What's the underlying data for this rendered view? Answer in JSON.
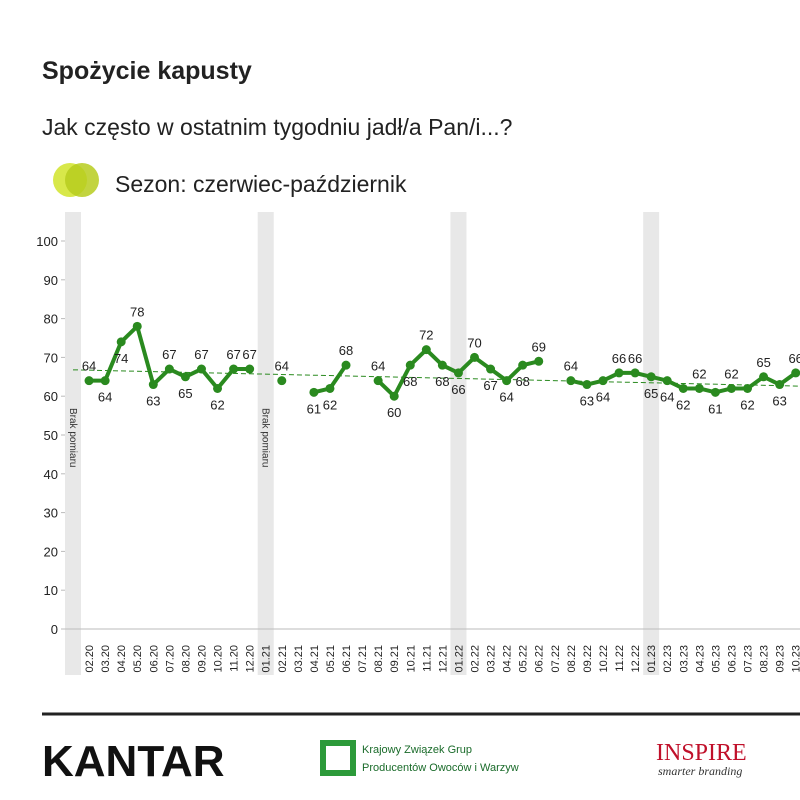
{
  "header": {
    "title": "Spożycie kapusty",
    "subtitle": "Jak często w ostatnim tygodniu jadł/a Pan/i...?",
    "legend": "Sezon: czerwiec-październik"
  },
  "chart_data": {
    "type": "line",
    "categories": [
      null,
      "02.20",
      "03.20",
      "04.20",
      "05.20",
      "06.20",
      "07.20",
      "08.20",
      "09.20",
      "10.20",
      "11.20",
      "12.20",
      "01.21",
      "02.21",
      "03.21",
      "04.21",
      "05.21",
      "06.21",
      "07.21",
      "08.21",
      "09.21",
      "10.21",
      "11.21",
      "12.21",
      "01.22",
      "02.22",
      "03.22",
      "04.22",
      "05.22",
      "06.22",
      "07.22",
      "08.22",
      "09.22",
      "10.22",
      "11.22",
      "12.22",
      "01.23",
      "02.23",
      "03.23",
      "04.23",
      "05.23",
      "06.23",
      "07.23",
      "08.23",
      "09.23",
      "10.23"
    ],
    "series": [
      {
        "name": "Spożycie kapusty",
        "color": "#2a8a1f",
        "values": [
          null,
          64,
          64,
          74,
          78,
          63,
          67,
          65,
          67,
          62,
          67,
          67,
          null,
          64,
          null,
          61,
          62,
          68,
          null,
          64,
          60,
          68,
          72,
          68,
          66,
          70,
          67,
          64,
          68,
          69,
          null,
          64,
          63,
          64,
          66,
          66,
          65,
          64,
          62,
          62,
          61,
          62,
          62,
          65,
          63,
          66
        ]
      }
    ],
    "trendline": [
      66.8,
      62.6
    ],
    "bands": [
      0,
      12,
      24,
      36
    ],
    "annotations": [
      {
        "text": "Brak pomiaru",
        "at": 0
      },
      {
        "text": "Brak pomiaru",
        "at": 12
      }
    ],
    "ylim": [
      0,
      100
    ],
    "yticks": [
      0,
      10,
      20,
      30,
      40,
      50,
      60,
      70,
      80,
      90,
      100
    ]
  },
  "footer": {
    "logo1": "KANTAR",
    "logo2_line1": "Krajowy Związek Grup",
    "logo2_line2": "Producentów Owoców i Warzyw",
    "logo3": "INSPIRE",
    "logo3_sub": "smarter branding"
  }
}
